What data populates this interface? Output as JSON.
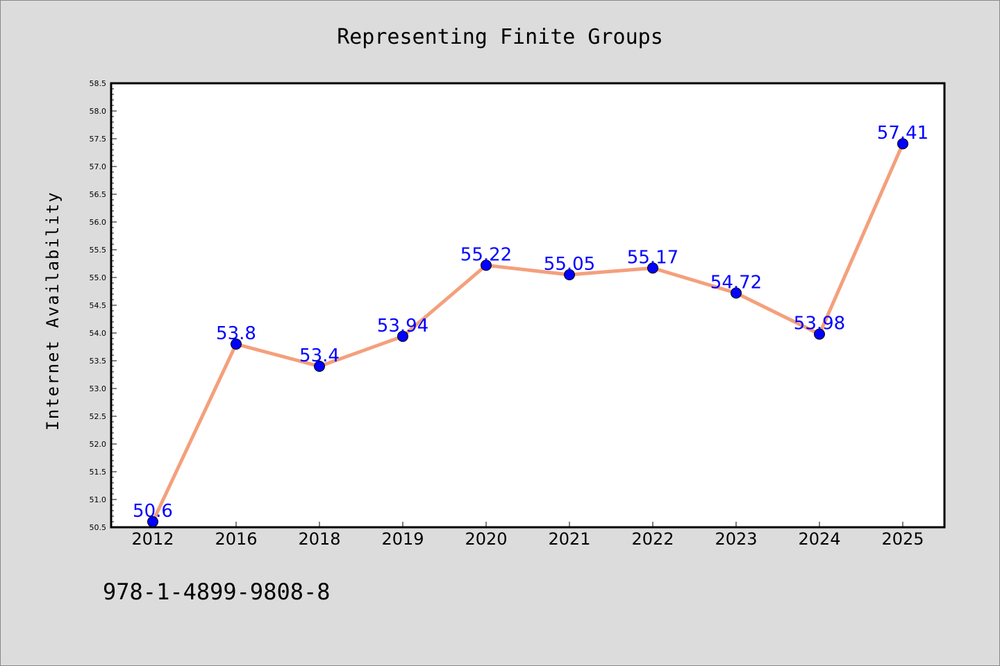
{
  "chart_data": {
    "type": "line",
    "title": "Representing Finite Groups",
    "xlabel": "",
    "ylabel": "Internet Availability",
    "categories": [
      "2012",
      "2016",
      "2018",
      "2019",
      "2020",
      "2021",
      "2022",
      "2023",
      "2024",
      "2025"
    ],
    "values": [
      50.6,
      53.8,
      53.4,
      53.94,
      55.22,
      55.05,
      55.17,
      54.72,
      53.98,
      57.41
    ],
    "value_labels": [
      "50.6",
      "53.8",
      "53.4",
      "53.94",
      "55.22",
      "55.05",
      "55.17",
      "54.72",
      "53.98",
      "57.41"
    ],
    "ylim": [
      50.5,
      58.5
    ],
    "yticks": [
      "50.5",
      "51.0",
      "51.5",
      "52.0",
      "52.5",
      "53.0",
      "53.5",
      "54.0",
      "54.5",
      "55.0",
      "55.5",
      "56.0",
      "56.5",
      "57.0",
      "57.5",
      "58.0",
      "58.5"
    ],
    "grid": false,
    "line_color": "#f4a07c",
    "marker_color": "#0000ff",
    "label_color": "#0000ff",
    "background": "#dcdcdc",
    "plot_background": "#ffffff"
  },
  "footer": {
    "isbn": "978-1-4899-9808-8"
  }
}
